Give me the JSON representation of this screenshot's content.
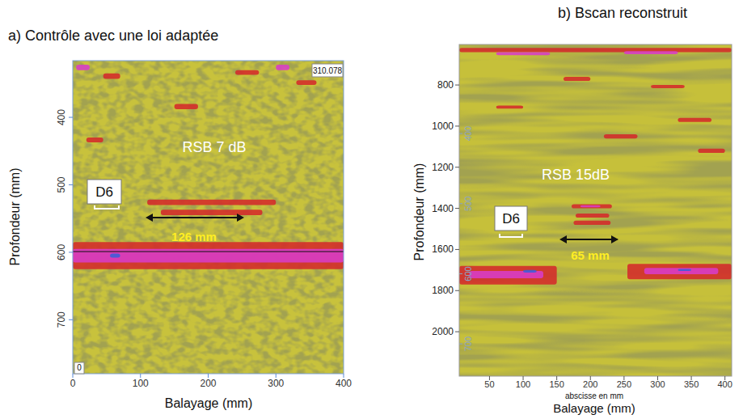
{
  "chart_data": [
    {
      "type": "heatmap",
      "title": "a) Contrôle avec une loi adaptée",
      "x_label": "Balayage (mm)",
      "y_label": "Profondeur (mm)",
      "xlim": [
        0,
        400
      ],
      "xticks": [
        0,
        100,
        200,
        300,
        400
      ],
      "ylim": [
        316,
        780
      ],
      "yticks": [
        400,
        500,
        600,
        700
      ],
      "annotations": [
        "RSB 7 dB",
        "D6",
        "126 mm",
        "310.078",
        "0"
      ],
      "echoes": [
        {
          "x": [
            5,
            25
          ],
          "depth": [
            322,
            330
          ],
          "color": "#d83cc8"
        },
        {
          "x": [
            300,
            320
          ],
          "depth": [
            322,
            330
          ],
          "color": "#d83cc8"
        },
        {
          "x": [
            45,
            70
          ],
          "depth": [
            335,
            343
          ],
          "color": "#d42a2a"
        },
        {
          "x": [
            150,
            185
          ],
          "depth": [
            380,
            388
          ],
          "color": "#d42a2a"
        },
        {
          "x": [
            240,
            275
          ],
          "depth": [
            330,
            337
          ],
          "color": "#d42a2a"
        },
        {
          "x": [
            330,
            360
          ],
          "depth": [
            345,
            352
          ],
          "color": "#d42a2a"
        },
        {
          "x": [
            20,
            45
          ],
          "depth": [
            430,
            437
          ],
          "color": "#d42a2a"
        },
        {
          "x": [
            110,
            300
          ],
          "depth": [
            522,
            530
          ],
          "color": "#d42a2a"
        },
        {
          "x": [
            130,
            280
          ],
          "depth": [
            537,
            545
          ],
          "color": "#d42a2a"
        },
        {
          "x": [
            0,
            400
          ],
          "depth": [
            585,
            625
          ],
          "color": "#d42a2a"
        },
        {
          "x": [
            0,
            400
          ],
          "depth": [
            595,
            615
          ],
          "color": "#d83cc8"
        },
        {
          "x": [
            55,
            70
          ],
          "depth": [
            602,
            608
          ],
          "color": "#3a5fd8"
        }
      ]
    },
    {
      "type": "heatmap",
      "title": "b) Bscan  reconstruit",
      "x_label": "Balayage (mm)",
      "x_sublabel": "abscisse en mm",
      "y_label": "Profondeur  (mm)",
      "xlim": [
        5,
        410
      ],
      "xticks": [
        50,
        100,
        150,
        200,
        250,
        300,
        350,
        400
      ],
      "ylim": [
        603,
        2216
      ],
      "yticks": [
        800,
        1000,
        1200,
        1400,
        1600,
        1800,
        2000
      ],
      "y2lim": [
        273,
        746
      ],
      "y2ticks": [
        400,
        500,
        600,
        700
      ],
      "annotations": [
        "RSB 15dB",
        "D6",
        "65 mm"
      ],
      "echoes": [
        {
          "x": [
            5,
            410
          ],
          "depth": [
            620,
            640
          ],
          "color": "#d42a2a"
        },
        {
          "x": [
            60,
            140
          ],
          "depth": [
            640,
            655
          ],
          "color": "#d83cc8"
        },
        {
          "x": [
            250,
            330
          ],
          "depth": [
            635,
            650
          ],
          "color": "#d83cc8"
        },
        {
          "x": [
            160,
            200
          ],
          "depth": [
            760,
            780
          ],
          "color": "#d42a2a"
        },
        {
          "x": [
            290,
            340
          ],
          "depth": [
            800,
            815
          ],
          "color": "#d42a2a"
        },
        {
          "x": [
            60,
            100
          ],
          "depth": [
            900,
            915
          ],
          "color": "#d42a2a"
        },
        {
          "x": [
            330,
            380
          ],
          "depth": [
            960,
            980
          ],
          "color": "#d42a2a"
        },
        {
          "x": [
            220,
            270
          ],
          "depth": [
            1040,
            1060
          ],
          "color": "#d42a2a"
        },
        {
          "x": [
            360,
            400
          ],
          "depth": [
            1110,
            1130
          ],
          "color": "#d42a2a"
        },
        {
          "x": [
            172,
            232
          ],
          "depth": [
            1380,
            1400
          ],
          "color": "#d42a2a"
        },
        {
          "x": [
            185,
            215
          ],
          "depth": [
            1385,
            1395
          ],
          "color": "#d83cc8"
        },
        {
          "x": [
            178,
            228
          ],
          "depth": [
            1425,
            1445
          ],
          "color": "#d42a2a"
        },
        {
          "x": [
            175,
            230
          ],
          "depth": [
            1460,
            1480
          ],
          "color": "#d42a2a"
        },
        {
          "x": [
            5,
            150
          ],
          "depth": [
            1680,
            1770
          ],
          "color": "#d42a2a"
        },
        {
          "x": [
            20,
            130
          ],
          "depth": [
            1705,
            1740
          ],
          "color": "#d83cc8"
        },
        {
          "x": [
            255,
            410
          ],
          "depth": [
            1670,
            1745
          ],
          "color": "#d42a2a"
        },
        {
          "x": [
            280,
            390
          ],
          "depth": [
            1690,
            1720
          ],
          "color": "#d83cc8"
        },
        {
          "x": [
            100,
            120
          ],
          "depth": [
            1700,
            1712
          ],
          "color": "#3a5fd8"
        },
        {
          "x": [
            330,
            350
          ],
          "depth": [
            1695,
            1705
          ],
          "color": "#3a5fd8"
        }
      ]
    }
  ]
}
